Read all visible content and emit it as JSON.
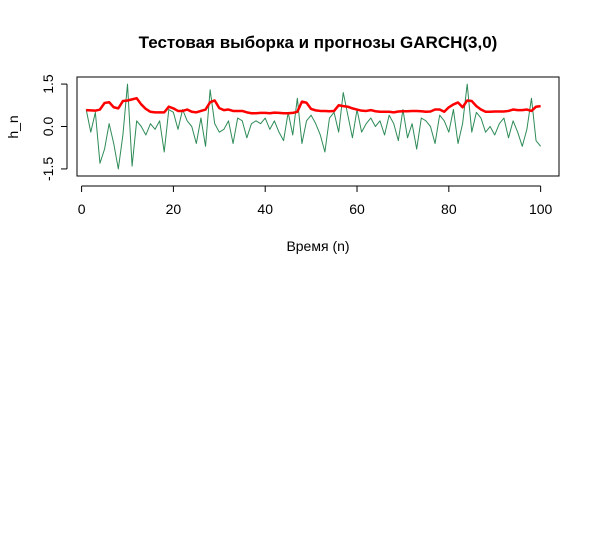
{
  "chart_data": {
    "type": "line",
    "title": "Тестовая выборка и прогнозы GARCH(3,0)",
    "xlabel": "Время (n)",
    "ylabel": "h_n",
    "xlim": [
      -1,
      104
    ],
    "ylim": [
      -1.75,
      1.75
    ],
    "x_ticks": [
      0,
      20,
      40,
      60,
      80,
      100
    ],
    "x_tick_labels": [
      "0",
      "20",
      "40",
      "60",
      "80",
      "100"
    ],
    "y_ticks": [
      -1.5,
      0.0,
      1.5
    ],
    "y_tick_labels": [
      "-1.5",
      "0.0",
      "1.5"
    ],
    "grid": false,
    "series": [
      {
        "color": "#2e8b57",
        "line_width": 1,
        "x": [
          1,
          2,
          3,
          4,
          5,
          6,
          7,
          8,
          9,
          10,
          11,
          12,
          13,
          14,
          15,
          16,
          17,
          18,
          19,
          20,
          21,
          22,
          23,
          24,
          25,
          26,
          27,
          28,
          29,
          30,
          31,
          32,
          33,
          34,
          35,
          36,
          37,
          38,
          39,
          40,
          41,
          42,
          43,
          44,
          45,
          46,
          47,
          48,
          49,
          50,
          51,
          52,
          53,
          54,
          55,
          56,
          57,
          58,
          59,
          60,
          61,
          62,
          63,
          64,
          65,
          66,
          67,
          68,
          69,
          70,
          71,
          72,
          73,
          74,
          75,
          76,
          77,
          78,
          79,
          80,
          81,
          82,
          83,
          84,
          85,
          86,
          87,
          88,
          89,
          90,
          91,
          92,
          93,
          94,
          95,
          96,
          97,
          98,
          99,
          100
        ],
        "values": [
          0.6,
          -0.2,
          0.5,
          -1.3,
          -0.8,
          0.1,
          -0.6,
          -1.5,
          -0.3,
          1.5,
          -1.4,
          0.2,
          0.0,
          -0.3,
          0.1,
          -0.1,
          0.2,
          -0.9,
          0.6,
          0.5,
          -0.1,
          0.6,
          0.2,
          0.0,
          -0.6,
          0.3,
          -0.7,
          1.3,
          0.1,
          -0.2,
          -0.1,
          0.2,
          -0.6,
          0.3,
          0.2,
          -0.4,
          0.1,
          0.2,
          0.1,
          0.3,
          -0.1,
          0.2,
          -0.2,
          -0.5,
          0.5,
          -0.3,
          1.0,
          -0.6,
          0.2,
          0.4,
          0.1,
          -0.3,
          -0.9,
          0.3,
          0.5,
          -0.2,
          1.2,
          0.4,
          -0.4,
          0.6,
          -0.2,
          0.1,
          0.3,
          0.0,
          0.2,
          -0.3,
          0.4,
          0.1,
          -0.5,
          0.6,
          -0.4,
          0.1,
          -0.8,
          0.3,
          0.2,
          0.0,
          -0.6,
          0.4,
          0.2,
          -0.2,
          0.6,
          -0.6,
          0.1,
          1.5,
          -0.2,
          0.5,
          0.3,
          -0.2,
          0.0,
          -0.3,
          0.1,
          0.3,
          -0.4,
          0.2,
          -0.2,
          -0.7,
          -0.1,
          1.0,
          -0.5,
          -0.7
        ]
      },
      {
        "color": "#ff0000",
        "line_width": 2.5,
        "x": [
          1,
          2,
          3,
          4,
          5,
          6,
          7,
          8,
          9,
          10,
          11,
          12,
          13,
          14,
          15,
          16,
          17,
          18,
          19,
          20,
          21,
          22,
          23,
          24,
          25,
          26,
          27,
          28,
          29,
          30,
          31,
          32,
          33,
          34,
          35,
          36,
          37,
          38,
          39,
          40,
          41,
          42,
          43,
          44,
          45,
          46,
          47,
          48,
          49,
          50,
          51,
          52,
          53,
          54,
          55,
          56,
          57,
          58,
          59,
          60,
          61,
          62,
          63,
          64,
          65,
          66,
          67,
          68,
          69,
          70,
          71,
          72,
          73,
          74,
          75,
          76,
          77,
          78,
          79,
          80,
          81,
          82,
          83,
          84,
          85,
          86,
          87,
          88,
          89,
          90,
          91,
          92,
          93,
          94,
          95,
          96,
          97,
          98,
          99,
          100
        ],
        "values": [
          0.58,
          0.57,
          0.56,
          0.6,
          0.83,
          0.86,
          0.68,
          0.64,
          0.9,
          0.92,
          0.96,
          1.0,
          0.78,
          0.62,
          0.52,
          0.5,
          0.5,
          0.5,
          0.7,
          0.64,
          0.55,
          0.55,
          0.6,
          0.52,
          0.5,
          0.55,
          0.6,
          0.86,
          0.92,
          0.65,
          0.58,
          0.6,
          0.55,
          0.55,
          0.55,
          0.5,
          0.47,
          0.47,
          0.48,
          0.48,
          0.47,
          0.49,
          0.48,
          0.47,
          0.47,
          0.48,
          0.52,
          0.88,
          0.84,
          0.62,
          0.57,
          0.55,
          0.55,
          0.54,
          0.55,
          0.75,
          0.72,
          0.7,
          0.64,
          0.6,
          0.56,
          0.55,
          0.58,
          0.54,
          0.52,
          0.52,
          0.52,
          0.5,
          0.53,
          0.54,
          0.54,
          0.55,
          0.55,
          0.54,
          0.52,
          0.53,
          0.6,
          0.6,
          0.52,
          0.68,
          0.78,
          0.85,
          0.68,
          0.92,
          0.9,
          0.72,
          0.6,
          0.52,
          0.52,
          0.53,
          0.53,
          0.53,
          0.55,
          0.6,
          0.58,
          0.58,
          0.6,
          0.55,
          0.7,
          0.72
        ]
      }
    ]
  }
}
